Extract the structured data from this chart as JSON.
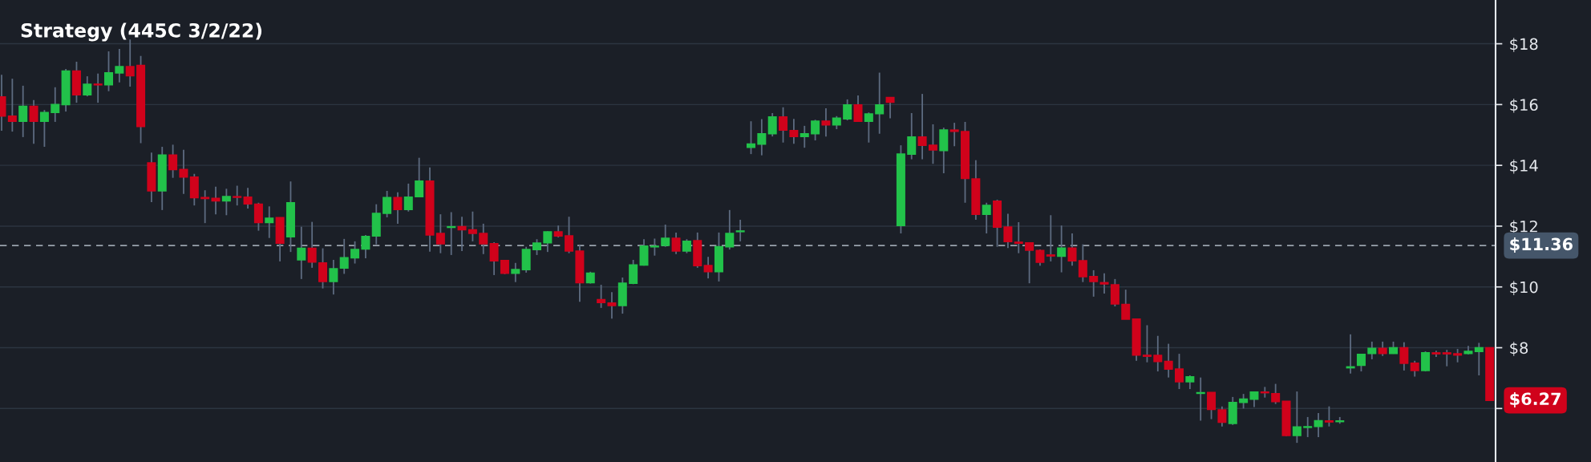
{
  "chart_data": {
    "type": "candlestick",
    "title": "Strategy (445C 3/2/22)",
    "categories": [
      null,
      null,
      null,
      null,
      null,
      null,
      null,
      null,
      null,
      null,
      null,
      null,
      null,
      null,
      null,
      null,
      null,
      null,
      null,
      null,
      null,
      null,
      null,
      null,
      null,
      null,
      null,
      null,
      null,
      null,
      null,
      null,
      null,
      null,
      null,
      null,
      null,
      null,
      null,
      null,
      null,
      null,
      null,
      null,
      null,
      null,
      null,
      null,
      null,
      null,
      null,
      null,
      null,
      null,
      null,
      null,
      null,
      null,
      null,
      null,
      null,
      null,
      null,
      null,
      null,
      null,
      null,
      null,
      null,
      null,
      null,
      null,
      null,
      null,
      null,
      null,
      null,
      null,
      null,
      null,
      null,
      null,
      null,
      null,
      null,
      null,
      null,
      null,
      null,
      null,
      null,
      null,
      null,
      null,
      null,
      null,
      null,
      null,
      null,
      null,
      null,
      null,
      null,
      null,
      null,
      null,
      null,
      null,
      null,
      null,
      null,
      null,
      null,
      null,
      null,
      null,
      null,
      null,
      null,
      null,
      null,
      null,
      null,
      null,
      null,
      null,
      null,
      null,
      null,
      null,
      null,
      null,
      null,
      null,
      null,
      null,
      null,
      null,
      null,
      null
    ],
    "ohlc": [
      [
        16.25,
        16.98,
        15.14,
        15.62
      ],
      [
        15.62,
        16.85,
        15.11,
        15.45
      ],
      [
        15.45,
        16.62,
        14.93,
        15.94
      ],
      [
        15.94,
        16.15,
        14.71,
        15.45
      ],
      [
        15.45,
        15.82,
        14.61,
        15.74
      ],
      [
        15.74,
        16.57,
        15.43,
        16.0
      ],
      [
        16.0,
        17.17,
        15.77,
        17.1
      ],
      [
        17.1,
        17.41,
        16.06,
        16.32
      ],
      [
        16.32,
        16.93,
        16.27,
        16.67
      ],
      [
        16.67,
        17.02,
        16.06,
        16.65
      ],
      [
        16.65,
        17.75,
        16.44,
        17.04
      ],
      [
        17.04,
        17.83,
        16.73,
        17.25
      ],
      [
        17.25,
        18.14,
        16.59,
        16.95
      ],
      [
        17.29,
        17.6,
        14.73,
        15.28
      ],
      [
        14.08,
        14.42,
        12.79,
        13.16
      ],
      [
        13.16,
        14.61,
        12.53,
        14.34
      ],
      [
        14.34,
        14.68,
        13.59,
        13.86
      ],
      [
        13.86,
        14.51,
        13.06,
        13.62
      ],
      [
        13.61,
        13.72,
        12.68,
        12.94
      ],
      [
        12.94,
        13.18,
        12.1,
        12.91
      ],
      [
        12.91,
        13.3,
        12.39,
        12.83
      ],
      [
        12.83,
        13.23,
        12.36,
        12.97
      ],
      [
        12.97,
        13.33,
        12.68,
        12.95
      ],
      [
        12.95,
        13.26,
        12.58,
        12.73
      ],
      [
        12.72,
        12.77,
        11.85,
        12.12
      ],
      [
        12.12,
        12.65,
        11.61,
        12.26
      ],
      [
        12.28,
        12.28,
        10.84,
        11.44
      ],
      [
        11.65,
        13.47,
        11.15,
        12.77
      ],
      [
        10.89,
        11.98,
        10.26,
        11.27
      ],
      [
        11.27,
        12.14,
        10.63,
        10.82
      ],
      [
        10.79,
        11.27,
        9.95,
        10.18
      ],
      [
        10.18,
        10.89,
        9.75,
        10.6
      ],
      [
        10.62,
        11.58,
        10.43,
        10.96
      ],
      [
        10.96,
        11.5,
        10.77,
        11.23
      ],
      [
        11.25,
        11.71,
        10.94,
        11.66
      ],
      [
        11.68,
        12.72,
        11.4,
        12.42
      ],
      [
        12.42,
        13.16,
        12.29,
        12.94
      ],
      [
        12.94,
        13.11,
        12.08,
        12.55
      ],
      [
        12.55,
        13.4,
        12.48,
        12.95
      ],
      [
        12.97,
        14.25,
        12.97,
        13.48
      ],
      [
        13.48,
        13.93,
        11.16,
        11.71
      ],
      [
        11.76,
        12.39,
        11.11,
        11.42
      ],
      [
        11.96,
        12.46,
        11.05,
        11.98
      ],
      [
        11.98,
        12.31,
        11.18,
        11.88
      ],
      [
        11.88,
        12.48,
        11.5,
        11.76
      ],
      [
        11.76,
        12.08,
        11.08,
        11.42
      ],
      [
        11.42,
        11.47,
        10.39,
        10.86
      ],
      [
        10.87,
        10.89,
        10.42,
        10.45
      ],
      [
        10.45,
        10.79,
        10.16,
        10.57
      ],
      [
        10.57,
        11.32,
        10.47,
        11.23
      ],
      [
        11.23,
        11.57,
        11.05,
        11.44
      ],
      [
        11.45,
        11.83,
        11.15,
        11.81
      ],
      [
        11.81,
        12.02,
        11.63,
        11.68
      ],
      [
        11.68,
        12.31,
        11.11,
        11.18
      ],
      [
        11.18,
        11.37,
        9.51,
        10.14
      ],
      [
        10.14,
        10.5,
        10.11,
        10.45
      ],
      [
        9.58,
        10.07,
        9.31,
        9.49
      ],
      [
        9.47,
        9.83,
        8.96,
        9.39
      ],
      [
        9.39,
        10.31,
        9.12,
        10.12
      ],
      [
        10.12,
        10.89,
        10.09,
        10.72
      ],
      [
        10.72,
        11.57,
        10.7,
        11.34
      ],
      [
        11.32,
        11.59,
        11.03,
        11.34
      ],
      [
        11.37,
        12.05,
        11.32,
        11.6
      ],
      [
        11.6,
        11.79,
        11.08,
        11.18
      ],
      [
        11.18,
        11.57,
        11.11,
        11.5
      ],
      [
        11.52,
        11.79,
        10.63,
        10.7
      ],
      [
        10.7,
        10.99,
        10.28,
        10.5
      ],
      [
        10.5,
        11.79,
        10.18,
        11.32
      ],
      [
        11.32,
        12.53,
        11.23,
        11.76
      ],
      [
        11.82,
        12.21,
        11.5,
        11.84
      ],
      [
        14.59,
        15.45,
        14.37,
        14.7
      ],
      [
        14.7,
        15.52,
        14.33,
        15.04
      ],
      [
        15.04,
        15.72,
        14.95,
        15.59
      ],
      [
        15.59,
        15.91,
        14.75,
        15.16
      ],
      [
        15.14,
        15.53,
        14.71,
        14.95
      ],
      [
        14.95,
        15.3,
        14.58,
        15.04
      ],
      [
        15.04,
        15.5,
        14.82,
        15.45
      ],
      [
        15.45,
        15.88,
        14.95,
        15.33
      ],
      [
        15.33,
        15.62,
        15.19,
        15.55
      ],
      [
        15.53,
        16.17,
        15.48,
        15.99
      ],
      [
        15.99,
        16.3,
        15.43,
        15.45
      ],
      [
        15.45,
        15.74,
        14.75,
        15.69
      ],
      [
        15.7,
        17.05,
        15.04,
        15.99
      ],
      [
        16.23,
        16.25,
        15.55,
        16.08
      ],
      [
        12.02,
        14.66,
        11.76,
        14.37
      ],
      [
        14.37,
        15.72,
        14.2,
        14.93
      ],
      [
        14.93,
        16.35,
        14.2,
        14.66
      ],
      [
        14.66,
        15.35,
        14.05,
        14.51
      ],
      [
        14.49,
        15.24,
        13.74,
        15.16
      ],
      [
        15.16,
        15.4,
        14.63,
        15.12
      ],
      [
        15.11,
        15.43,
        12.77,
        13.57
      ],
      [
        13.55,
        14.17,
        12.21,
        12.39
      ],
      [
        12.39,
        12.77,
        11.76,
        12.68
      ],
      [
        12.82,
        12.87,
        11.32,
        11.97
      ],
      [
        11.97,
        12.41,
        11.28,
        11.49
      ],
      [
        11.47,
        12.13,
        11.11,
        11.44
      ],
      [
        11.45,
        11.45,
        10.12,
        11.21
      ],
      [
        11.2,
        11.23,
        10.7,
        10.81
      ],
      [
        11.05,
        12.36,
        10.84,
        11.02
      ],
      [
        11.01,
        12.02,
        10.48,
        11.28
      ],
      [
        11.28,
        11.76,
        10.7,
        10.86
      ],
      [
        10.86,
        11.4,
        10.16,
        10.34
      ],
      [
        10.34,
        10.55,
        9.68,
        10.18
      ],
      [
        10.14,
        10.45,
        9.78,
        10.1
      ],
      [
        10.07,
        10.26,
        9.36,
        9.44
      ],
      [
        9.42,
        9.91,
        8.94,
        8.94
      ],
      [
        8.94,
        8.96,
        7.57,
        7.76
      ],
      [
        7.75,
        8.74,
        7.52,
        7.72
      ],
      [
        7.75,
        8.39,
        7.22,
        7.55
      ],
      [
        7.55,
        8.13,
        7.02,
        7.3
      ],
      [
        7.3,
        7.8,
        6.64,
        6.88
      ],
      [
        6.88,
        7.09,
        6.64,
        7.04
      ],
      [
        6.5,
        7.02,
        5.6,
        6.52
      ],
      [
        6.53,
        6.53,
        5.65,
        5.97
      ],
      [
        5.95,
        6.07,
        5.41,
        5.55
      ],
      [
        5.51,
        6.38,
        5.46,
        6.2
      ],
      [
        6.2,
        6.48,
        6.0,
        6.31
      ],
      [
        6.31,
        6.56,
        6.05,
        6.54
      ],
      [
        6.54,
        6.71,
        6.36,
        6.52
      ],
      [
        6.49,
        6.81,
        6.15,
        6.23
      ],
      [
        6.24,
        6.24,
        5.09,
        5.11
      ],
      [
        5.11,
        6.56,
        4.87,
        5.39
      ],
      [
        5.38,
        5.72,
        5.06,
        5.4
      ],
      [
        5.41,
        5.85,
        5.06,
        5.6
      ],
      [
        5.59,
        6.07,
        5.41,
        5.56
      ],
      [
        5.57,
        5.72,
        5.5,
        5.59
      ],
      [
        7.34,
        8.44,
        7.15,
        7.37
      ],
      [
        7.42,
        7.78,
        7.22,
        7.78
      ],
      [
        7.81,
        8.2,
        7.62,
        7.98
      ],
      [
        7.98,
        8.2,
        7.73,
        7.81
      ],
      [
        7.81,
        8.2,
        7.8,
        8.0
      ],
      [
        8.0,
        8.18,
        7.25,
        7.49
      ],
      [
        7.49,
        7.57,
        7.05,
        7.25
      ],
      [
        7.25,
        7.88,
        7.22,
        7.83
      ],
      [
        7.83,
        7.9,
        7.7,
        7.8
      ],
      [
        7.83,
        7.93,
        7.39,
        7.8
      ],
      [
        7.8,
        7.96,
        7.52,
        7.76
      ],
      [
        7.81,
        8.06,
        7.78,
        7.88
      ],
      [
        7.88,
        8.16,
        7.09,
        8.0
      ],
      [
        8.0,
        8.0,
        6.27,
        6.27
      ]
    ],
    "ylim": [
      4.24,
      19.44
    ],
    "yticks": [
      {
        "value": 6,
        "label": null
      },
      {
        "value": 8,
        "label": "$8"
      },
      {
        "value": 10,
        "label": "$10"
      },
      {
        "value": 12,
        "label": "$12"
      },
      {
        "value": 14,
        "label": "$14"
      },
      {
        "value": 16,
        "label": "$16"
      },
      {
        "value": 18,
        "label": "$18"
      }
    ],
    "tick_labels": "y",
    "grid": "y",
    "ref_lines": [
      {
        "axis": "y",
        "value": 11.36,
        "label": "$11.36",
        "color": "#9aa3ad",
        "line_style": "dashed"
      }
    ],
    "annotations": [
      "$6.27"
    ]
  }
}
